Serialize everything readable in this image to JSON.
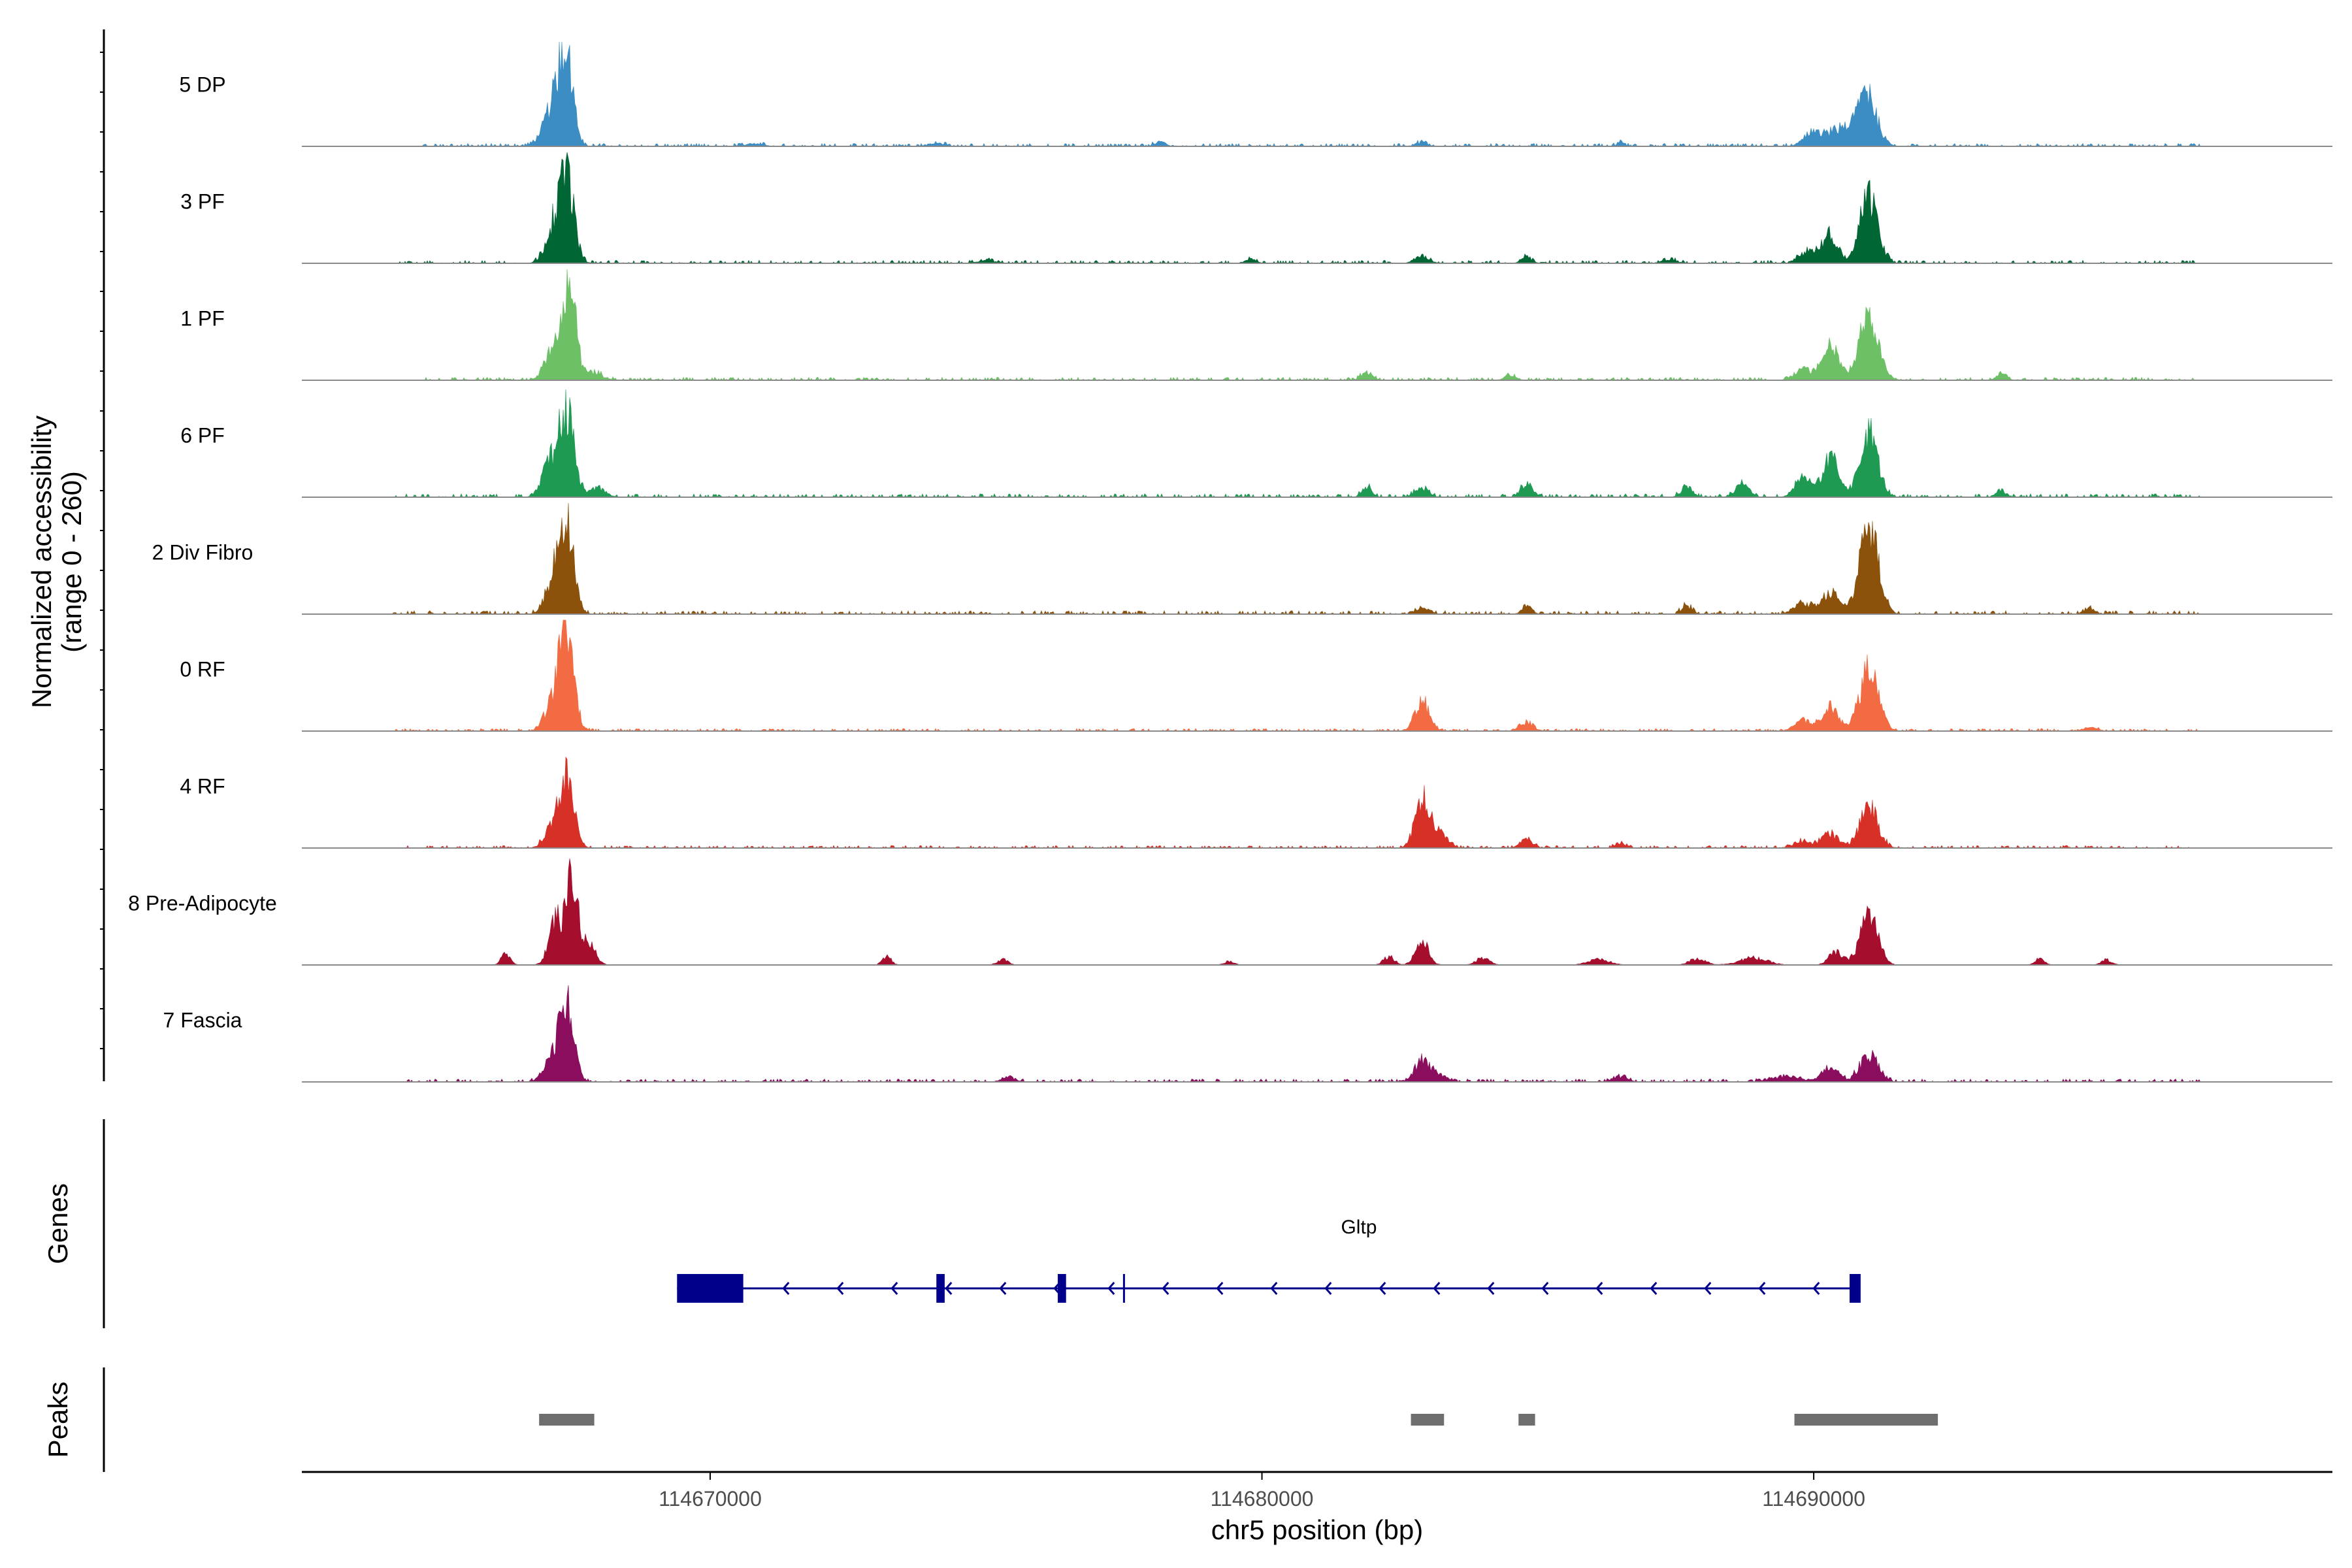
{
  "chart_data": {
    "type": "area",
    "title": "",
    "chromosome": "chr5",
    "xlabel": "chr5 position (bp)",
    "ylabel_line1": "Normalized accessibility",
    "ylabel_line2": "(range 0 - 260)",
    "y_range": [
      0,
      260
    ],
    "xlim": [
      114662600,
      114699400
    ],
    "x_ticks": [
      {
        "value": 114670000,
        "label": "114670000"
      },
      {
        "value": 114680000,
        "label": "114680000"
      },
      {
        "value": 114690000,
        "label": "114690000"
      }
    ],
    "series": [
      {
        "name": "5 DP",
        "color": "#3b8dc4",
        "peaks": [
          [
            114667400,
            255,
            120
          ],
          [
            114667200,
            95,
            140
          ],
          [
            114667050,
            40,
            160
          ],
          [
            114690950,
            150,
            180
          ],
          [
            114690400,
            45,
            200
          ],
          [
            114689950,
            35,
            150
          ],
          [
            114678150,
            14,
            90
          ],
          [
            114686500,
            14,
            60
          ],
          [
            114682900,
            10,
            100
          ],
          [
            114674100,
            8,
            150
          ],
          [
            114670800,
            8,
            150
          ]
        ],
        "baseline_amp": 7,
        "extent": [
          114664800,
          114697000
        ]
      },
      {
        "name": "3 PF",
        "color": "#006634",
        "peaks": [
          [
            114667400,
            250,
            130
          ],
          [
            114667150,
            90,
            140
          ],
          [
            114691000,
            185,
            160
          ],
          [
            114690300,
            80,
            140
          ],
          [
            114689900,
            35,
            150
          ],
          [
            114682900,
            22,
            120
          ],
          [
            114684800,
            18,
            90
          ],
          [
            114687400,
            12,
            120
          ],
          [
            114679800,
            10,
            100
          ],
          [
            114675000,
            8,
            150
          ]
        ],
        "baseline_amp": 7,
        "extent": [
          114664300,
          114697000
        ]
      },
      {
        "name": "1 PF",
        "color": "#6dc066",
        "peaks": [
          [
            114667450,
            255,
            120
          ],
          [
            114667150,
            90,
            140
          ],
          [
            114691000,
            190,
            170
          ],
          [
            114690300,
            95,
            150
          ],
          [
            114689800,
            30,
            150
          ],
          [
            114681900,
            20,
            100
          ],
          [
            114684500,
            15,
            100
          ],
          [
            114693400,
            18,
            90
          ],
          [
            114667900,
            20,
            150
          ]
        ],
        "baseline_amp": 7,
        "extent": [
          114664800,
          114697000
        ]
      },
      {
        "name": "6 PF",
        "color": "#1e9a53",
        "peaks": [
          [
            114667400,
            250,
            130
          ],
          [
            114667100,
            95,
            140
          ],
          [
            114691000,
            180,
            160
          ],
          [
            114690300,
            110,
            150
          ],
          [
            114689800,
            55,
            140
          ],
          [
            114684800,
            35,
            110
          ],
          [
            114682900,
            22,
            130
          ],
          [
            114681900,
            30,
            90
          ],
          [
            114687700,
            28,
            100
          ],
          [
            114688700,
            38,
            120
          ],
          [
            114693400,
            20,
            90
          ],
          [
            114667950,
            25,
            150
          ]
        ],
        "baseline_amp": 8,
        "extent": [
          114664300,
          114697000
        ]
      },
      {
        "name": "2 Div Fibro",
        "color": "#8c510a",
        "peaks": [
          [
            114667400,
            255,
            130
          ],
          [
            114667150,
            85,
            140
          ],
          [
            114691000,
            240,
            170
          ],
          [
            114690300,
            60,
            150
          ],
          [
            114689800,
            30,
            150
          ],
          [
            114682900,
            18,
            120
          ],
          [
            114684800,
            22,
            90
          ],
          [
            114687700,
            22,
            90
          ],
          [
            114695000,
            18,
            90
          ]
        ],
        "baseline_amp": 8,
        "extent": [
          114664200,
          114697000
        ]
      },
      {
        "name": "0 RF",
        "color": "#f26b43",
        "peaks": [
          [
            114667400,
            255,
            130
          ],
          [
            114667150,
            85,
            140
          ],
          [
            114691000,
            175,
            170
          ],
          [
            114690300,
            65,
            150
          ],
          [
            114682900,
            85,
            130
          ],
          [
            114684800,
            25,
            120
          ],
          [
            114689800,
            30,
            150
          ],
          [
            114695000,
            10,
            120
          ]
        ],
        "baseline_amp": 6,
        "extent": [
          114664300,
          114697000
        ]
      },
      {
        "name": "4 RF",
        "color": "#d73027",
        "peaks": [
          [
            114667400,
            200,
            130
          ],
          [
            114667150,
            60,
            140
          ],
          [
            114691000,
            115,
            160
          ],
          [
            114690300,
            40,
            150
          ],
          [
            114682900,
            130,
            130
          ],
          [
            114683200,
            45,
            150
          ],
          [
            114684800,
            25,
            110
          ],
          [
            114686500,
            15,
            90
          ],
          [
            114689800,
            20,
            150
          ]
        ],
        "baseline_amp": 6,
        "extent": [
          114664500,
          114697000
        ]
      },
      {
        "name": "8 Pre-Adipocyte",
        "color": "#a50f2d",
        "peaks": [
          [
            114667500,
            255,
            100
          ],
          [
            114667200,
            130,
            120
          ],
          [
            114667800,
            60,
            120
          ],
          [
            114666300,
            35,
            80
          ],
          [
            114691000,
            145,
            160
          ],
          [
            114690400,
            35,
            130
          ],
          [
            114682900,
            65,
            120
          ],
          [
            114682300,
            25,
            100
          ],
          [
            114684000,
            20,
            120
          ],
          [
            114686100,
            15,
            200
          ],
          [
            114687900,
            18,
            150
          ],
          [
            114688900,
            20,
            250
          ],
          [
            114694100,
            20,
            80
          ],
          [
            114695300,
            15,
            100
          ],
          [
            114673200,
            25,
            80
          ],
          [
            114675300,
            15,
            100
          ],
          [
            114679400,
            10,
            90
          ]
        ],
        "baseline_amp": 0,
        "extent": [
          114666000,
          114696000
        ]
      },
      {
        "name": "7 Fascia",
        "color": "#8b0d5e",
        "peaks": [
          [
            114667400,
            205,
            130
          ],
          [
            114667150,
            65,
            150
          ],
          [
            114691000,
            80,
            160
          ],
          [
            114690300,
            40,
            150
          ],
          [
            114682900,
            60,
            130
          ],
          [
            114683200,
            20,
            150
          ],
          [
            114675400,
            15,
            120
          ],
          [
            114686500,
            15,
            120
          ],
          [
            114689500,
            15,
            250
          ]
        ],
        "baseline_amp": 7,
        "extent": [
          114664500,
          114697000
        ]
      }
    ],
    "genes": [
      {
        "name": "Gltp",
        "strand": "-",
        "color": "#00008b",
        "start": 114669400,
        "end": 114690800,
        "exons": [
          [
            114669400,
            114670600
          ],
          [
            114674100,
            114674250
          ],
          [
            114676300,
            114676450
          ],
          [
            114690650,
            114690850
          ]
        ],
        "markers": [
          114677500
        ]
      }
    ],
    "peaks_track": {
      "label": "Peaks",
      "color": "#6e6e6e",
      "regions": [
        [
          114666900,
          114667900
        ],
        [
          114682700,
          114683300
        ],
        [
          114684650,
          114684950
        ],
        [
          114689650,
          114692250
        ]
      ]
    },
    "genes_track_label": "Genes"
  }
}
